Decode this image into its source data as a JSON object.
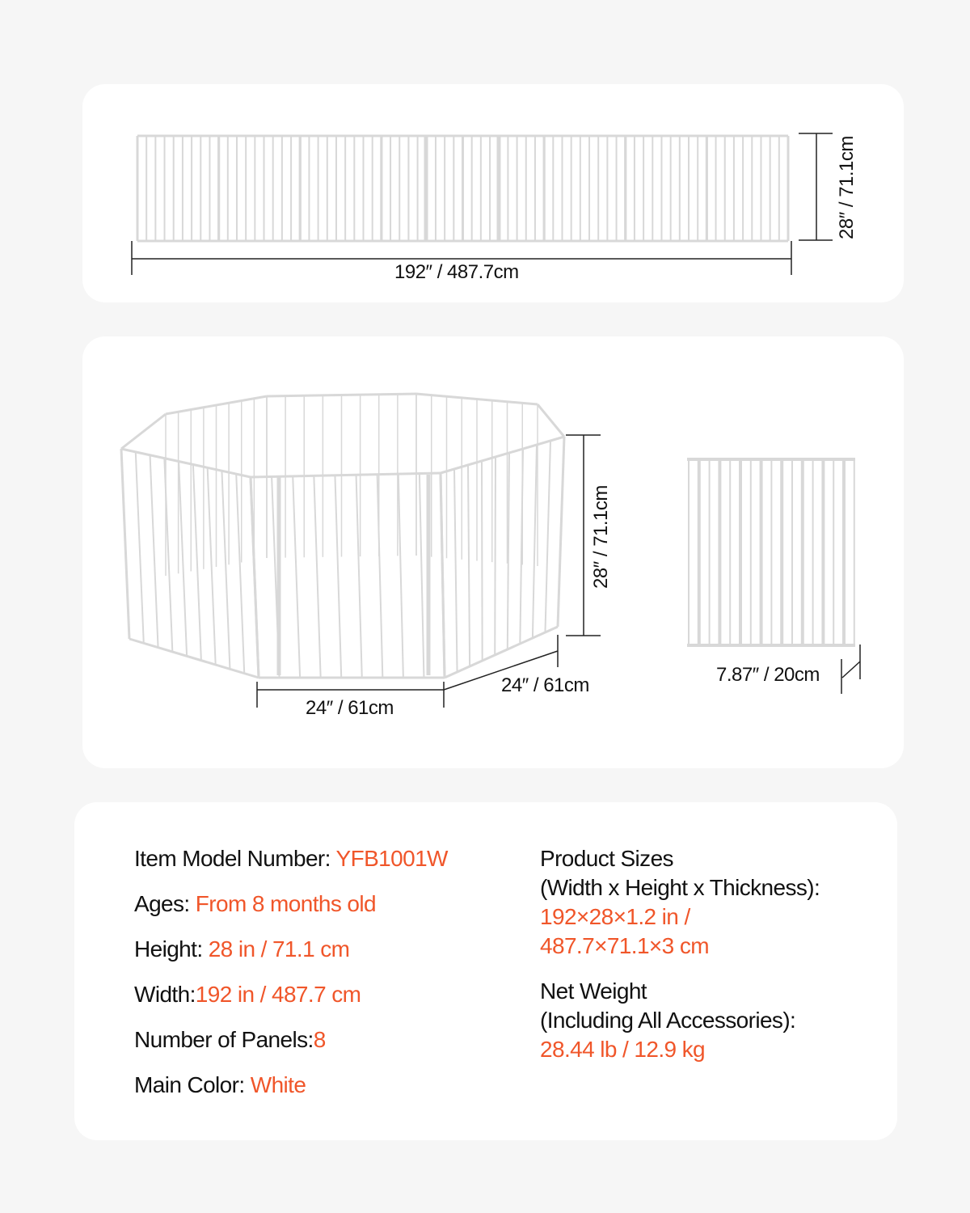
{
  "colors": {
    "accent": "#f0562a",
    "background": "#f6f6f6",
    "card": "#ffffff",
    "fence": "#d8d8d8"
  },
  "flat_view": {
    "width_label": "192″ / 487.7cm",
    "height_label": "28″ / 71.1cm",
    "panel_count": 8
  },
  "octagon_view": {
    "height_label": "28″ / 71.1cm",
    "front_width_label": "24″ / 61cm",
    "side_width_label": "24″ / 61cm"
  },
  "folded_view": {
    "thickness_label": "7.87″ / 20cm"
  },
  "specs": {
    "left": [
      {
        "label": "Item Model Number: ",
        "value": "YFB1001W"
      },
      {
        "label": "Ages: ",
        "value": "From 8 months old"
      },
      {
        "label": "Height: ",
        "value": "28 in / 71.1 cm"
      },
      {
        "label": "Width:",
        "value": "192 in / 487.7 cm"
      },
      {
        "label": "Number of Panels:",
        "value": "8"
      },
      {
        "label": "Main Color: ",
        "value": "White"
      }
    ],
    "sizes": {
      "label_line1": "Product Sizes",
      "label_line2": "(Width x Height x Thickness):",
      "value_line1": "192×28×1.2 in /",
      "value_line2": "487.7×71.1×3 cm"
    },
    "weight": {
      "label_line1": "Net Weight",
      "label_line2": "(Including All Accessories):",
      "value": "28.44 lb / 12.9 kg"
    }
  }
}
